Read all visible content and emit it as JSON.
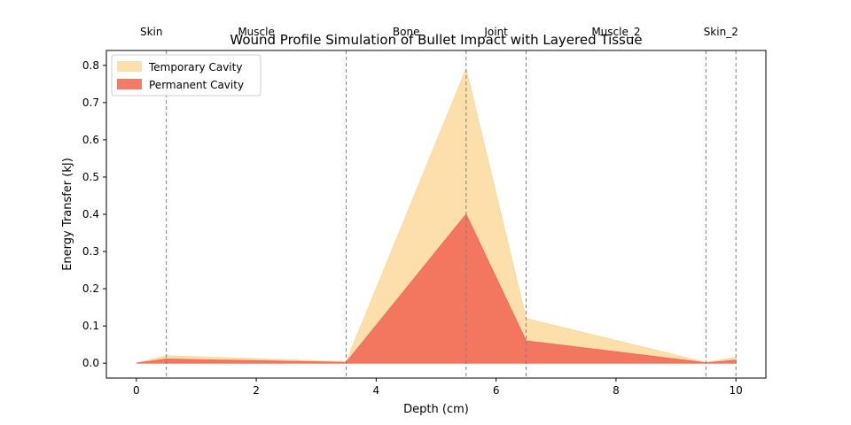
{
  "chart_data": {
    "type": "area",
    "title": "Wound Profile Simulation of Bullet Impact with Layered Tissue",
    "xlabel": "Depth (cm)",
    "ylabel": "Energy Transfer (kJ)",
    "xlim": [
      -0.5,
      10.5
    ],
    "ylim": [
      -0.04,
      0.84
    ],
    "xticks": [
      0,
      2,
      4,
      6,
      8,
      10
    ],
    "yticks": [
      0.0,
      0.1,
      0.2,
      0.3,
      0.4,
      0.5,
      0.6,
      0.7,
      0.8
    ],
    "grid": false,
    "legend_position": "upper-left",
    "x": [
      0,
      0.5,
      3.5,
      5.5,
      6.5,
      9.5,
      10
    ],
    "series": [
      {
        "name": "Temporary Cavity",
        "color": "#fbd99c",
        "values": [
          0.0,
          0.02,
          0.004,
          0.79,
          0.12,
          0.002,
          0.016
        ]
      },
      {
        "name": "Permanent Cavity",
        "color": "#f26b57",
        "values": [
          0.0,
          0.011,
          0.002,
          0.4,
          0.06,
          0.001,
          0.008
        ]
      }
    ],
    "layer_boundaries": [
      0.5,
      3.5,
      5.5,
      6.5,
      9.5,
      10
    ],
    "layer_labels": [
      {
        "label": "Skin",
        "x": 0.25
      },
      {
        "label": "Muscle",
        "x": 2.0
      },
      {
        "label": "Bone",
        "x": 4.5
      },
      {
        "label": "Joint",
        "x": 6.0
      },
      {
        "label": "Muscle_2",
        "x": 8.0
      },
      {
        "label": "Skin_2",
        "x": 9.75
      }
    ]
  }
}
